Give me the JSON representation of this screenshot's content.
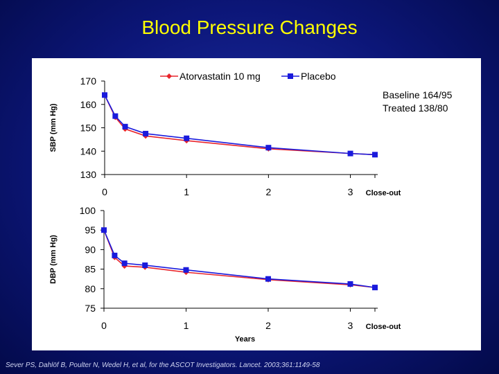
{
  "slide": {
    "title": "Blood Pressure Changes",
    "citation": "Sever PS, Dahlöf B, Poulter N, Wedel H, et al, for the ASCOT Investigators. Lancet. 2003;361:1149-58"
  },
  "colors": {
    "background": "#0c1678",
    "title": "#ffff00",
    "atorvastatin": "#e8242b",
    "placebo": "#1a1adc"
  },
  "chart_data": [
    {
      "type": "line",
      "ylabel": "SBP (mm Hg)",
      "xlabel": "",
      "ylim": [
        130,
        170
      ],
      "yticks": [
        130,
        140,
        150,
        160,
        170
      ],
      "xlim": [
        0,
        3.3
      ],
      "xticks": [
        {
          "value": 0,
          "label": "0"
        },
        {
          "value": 1,
          "label": "1"
        },
        {
          "value": 2,
          "label": "2"
        },
        {
          "value": 3,
          "label": "3"
        },
        {
          "value": 3.3,
          "label": "Close-out"
        }
      ],
      "legend": {
        "position": "top-center",
        "entries": [
          "Atorvastatin 10 mg",
          "Placebo"
        ]
      },
      "annotation": {
        "line1": "Baseline  164/95",
        "line2": "Treated   138/80"
      },
      "x": [
        0,
        0.13,
        0.25,
        0.5,
        1,
        2,
        3,
        3.3
      ],
      "series": [
        {
          "name": "Atorvastatin 10 mg",
          "marker": "diamond",
          "values": [
            164,
            154.5,
            149.5,
            146.5,
            144.5,
            141,
            139,
            138.5
          ]
        },
        {
          "name": "Placebo",
          "marker": "square",
          "values": [
            164,
            155,
            150.5,
            147.5,
            145.5,
            141.5,
            139,
            138.5
          ]
        }
      ]
    },
    {
      "type": "line",
      "ylabel": "DBP (mm Hg)",
      "xlabel": "Years",
      "ylim": [
        75,
        100
      ],
      "yticks": [
        75,
        80,
        85,
        90,
        95,
        100
      ],
      "xlim": [
        0,
        3.3
      ],
      "xticks": [
        {
          "value": 0,
          "label": "0"
        },
        {
          "value": 1,
          "label": "1"
        },
        {
          "value": 2,
          "label": "2"
        },
        {
          "value": 3,
          "label": "3"
        },
        {
          "value": 3.3,
          "label": "Close-out"
        }
      ],
      "x": [
        0,
        0.13,
        0.25,
        0.5,
        1,
        2,
        3,
        3.3
      ],
      "series": [
        {
          "name": "Atorvastatin 10 mg",
          "marker": "diamond",
          "values": [
            95,
            88,
            85.8,
            85.5,
            84.2,
            82.3,
            81,
            80.3
          ]
        },
        {
          "name": "Placebo",
          "marker": "square",
          "values": [
            95,
            88.5,
            86.5,
            86,
            84.8,
            82.5,
            81.2,
            80.3
          ]
        }
      ]
    }
  ]
}
